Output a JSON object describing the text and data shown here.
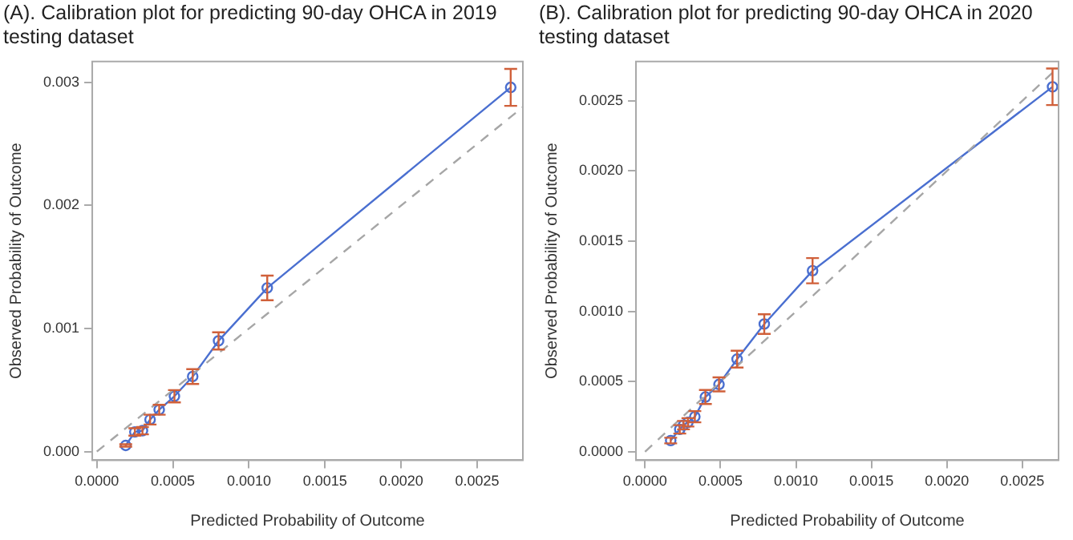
{
  "chart_data": [
    {
      "type": "line",
      "title": "(A). Calibration plot for predicting 90-day OHCA in 2019 testing dataset",
      "xlabel": "Predicted Probability of Outcome",
      "ylabel": "Observed Probability of Outcome",
      "xlim": [
        -3e-05,
        0.0028
      ],
      "ylim": [
        -7e-05,
        0.00317
      ],
      "xticks": [
        {
          "value": 0,
          "label": "0.0000"
        },
        {
          "value": 0.0005,
          "label": "0.0005"
        },
        {
          "value": 0.001,
          "label": "0.0010"
        },
        {
          "value": 0.0015,
          "label": "0.0015"
        },
        {
          "value": 0.002,
          "label": "0.0020"
        },
        {
          "value": 0.0025,
          "label": "0.0025"
        }
      ],
      "yticks": [
        {
          "value": 0,
          "label": "0.000"
        },
        {
          "value": 0.001,
          "label": "0.001"
        },
        {
          "value": 0.002,
          "label": "0.002"
        },
        {
          "value": 0.003,
          "label": "0.003"
        }
      ],
      "grid": false,
      "legend": false,
      "series": [
        {
          "type": "line",
          "color": "#a6a6a6",
          "line_style": "dashed",
          "marker": "none",
          "x": [
            0,
            0.0028
          ],
          "values": [
            0,
            0.0028
          ]
        },
        {
          "type": "line",
          "color": "#4a6fd0",
          "marker": "circle",
          "line_style": "solid",
          "x": [
            0.00019,
            0.00025,
            0.0003,
            0.00035,
            0.00041,
            0.00051,
            0.00063,
            0.0008,
            0.00112,
            0.00272
          ],
          "values": [
            5e-05,
            0.00016,
            0.00017,
            0.00026,
            0.00034,
            0.00045,
            0.00061,
            0.0009,
            0.00133,
            0.00296
          ],
          "errors": [
            1e-05,
            3e-05,
            3e-05,
            4e-05,
            4e-05,
            5e-05,
            6e-05,
            7e-05,
            0.0001,
            0.00015
          ]
        }
      ]
    },
    {
      "type": "line",
      "title": "(B). Calibration plot for predicting 90-day OHCA in 2020 testing dataset",
      "xlabel": "Predicted Probability of Outcome",
      "ylabel": "Observed Probability of Outcome",
      "xlim": [
        -6e-05,
        0.00274
      ],
      "ylim": [
        -6e-05,
        0.00278
      ],
      "xticks": [
        {
          "value": 0,
          "label": "0.0000"
        },
        {
          "value": 0.0005,
          "label": "0.0005"
        },
        {
          "value": 0.001,
          "label": "0.0010"
        },
        {
          "value": 0.0015,
          "label": "0.0015"
        },
        {
          "value": 0.002,
          "label": "0.0020"
        },
        {
          "value": 0.0025,
          "label": "0.0025"
        }
      ],
      "yticks": [
        {
          "value": 0,
          "label": "0.0000"
        },
        {
          "value": 0.0005,
          "label": "0.0005"
        },
        {
          "value": 0.001,
          "label": "0.0010"
        },
        {
          "value": 0.0015,
          "label": "0.0015"
        },
        {
          "value": 0.002,
          "label": "0.0020"
        },
        {
          "value": 0.0025,
          "label": "0.0025"
        }
      ],
      "grid": false,
      "legend": false,
      "series": [
        {
          "type": "line",
          "color": "#a6a6a6",
          "line_style": "dashed",
          "marker": "none",
          "x": [
            0,
            0.0027
          ],
          "values": [
            0,
            0.0027
          ]
        },
        {
          "type": "line",
          "color": "#4a6fd0",
          "marker": "circle",
          "line_style": "solid",
          "x": [
            0.00017,
            0.00023,
            0.000255,
            0.000284,
            0.00033,
            0.0004,
            0.00049,
            0.00061,
            0.00079,
            0.00111,
            0.0027
          ],
          "values": [
            8e-05,
            0.00016,
            0.00019,
            0.00021,
            0.00025,
            0.00039,
            0.00048,
            0.00066,
            0.00091,
            0.00129,
            0.0026
          ],
          "errors": [
            2e-05,
            3e-05,
            3e-05,
            3e-05,
            4e-05,
            5e-05,
            5e-05,
            6e-05,
            7e-05,
            9e-05,
            0.00013
          ]
        }
      ]
    }
  ]
}
